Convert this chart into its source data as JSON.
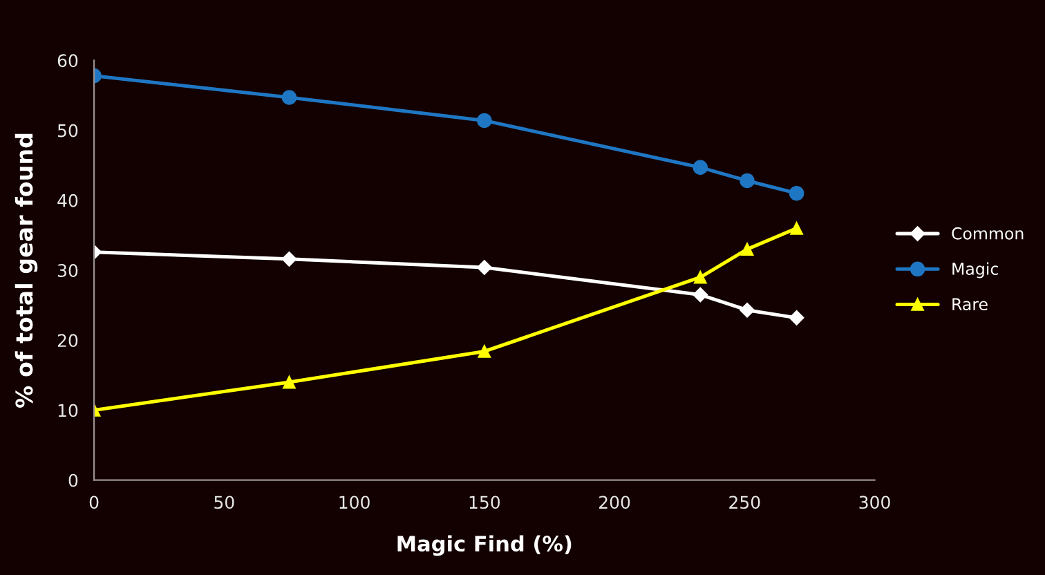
{
  "chart_data": {
    "type": "line",
    "xlabel": "Magic Find (%)",
    "ylabel": "% of total gear found",
    "series": [
      {
        "name": "Common",
        "color": "#ffffff",
        "marker": "diamond",
        "x": [
          0,
          75,
          150,
          233,
          251,
          270
        ],
        "values": [
          32.6,
          31.6,
          30.4,
          26.5,
          24.3,
          23.2
        ]
      },
      {
        "name": "Magic",
        "color": "#1f77c4",
        "marker": "circle",
        "x": [
          0,
          75,
          150,
          233,
          251,
          270
        ],
        "values": [
          57.8,
          54.7,
          51.4,
          44.7,
          42.8,
          41.0
        ]
      },
      {
        "name": "Rare",
        "color": "#ffff00",
        "marker": "triangle",
        "x": [
          0,
          75,
          150,
          233,
          251,
          270
        ],
        "values": [
          10.0,
          14.0,
          18.4,
          29.0,
          33.0,
          36.0
        ]
      }
    ],
    "xlim": [
      0,
      300
    ],
    "xticks": [
      0,
      50,
      100,
      150,
      200,
      250,
      300
    ],
    "ylim": [
      0,
      60
    ],
    "yticks": [
      0,
      10,
      20,
      30,
      40,
      50,
      60
    ],
    "grid": false,
    "legend": "right",
    "line_style": "solid"
  }
}
